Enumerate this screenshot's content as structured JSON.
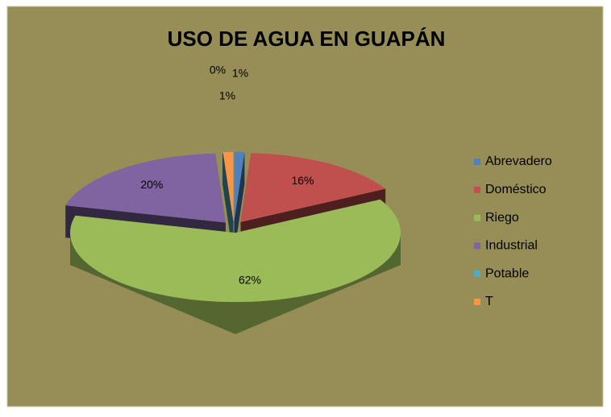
{
  "chart_data": {
    "type": "pie3d",
    "title": "USO DE AGUA EN GUAPÁN",
    "categories": [
      "Abrevadero",
      "Doméstico",
      "Riego",
      "Industrial",
      "Potable",
      "T"
    ],
    "values": [
      1,
      16,
      62,
      20,
      0,
      1
    ],
    "value_labels": [
      "1%",
      "16%",
      "62%",
      "20%",
      "0%",
      "1%"
    ],
    "colors": [
      "#4f81bd",
      "#c0504d",
      "#9bbb59",
      "#8064a2",
      "#4bacc6",
      "#f79646"
    ],
    "legend": "right"
  }
}
